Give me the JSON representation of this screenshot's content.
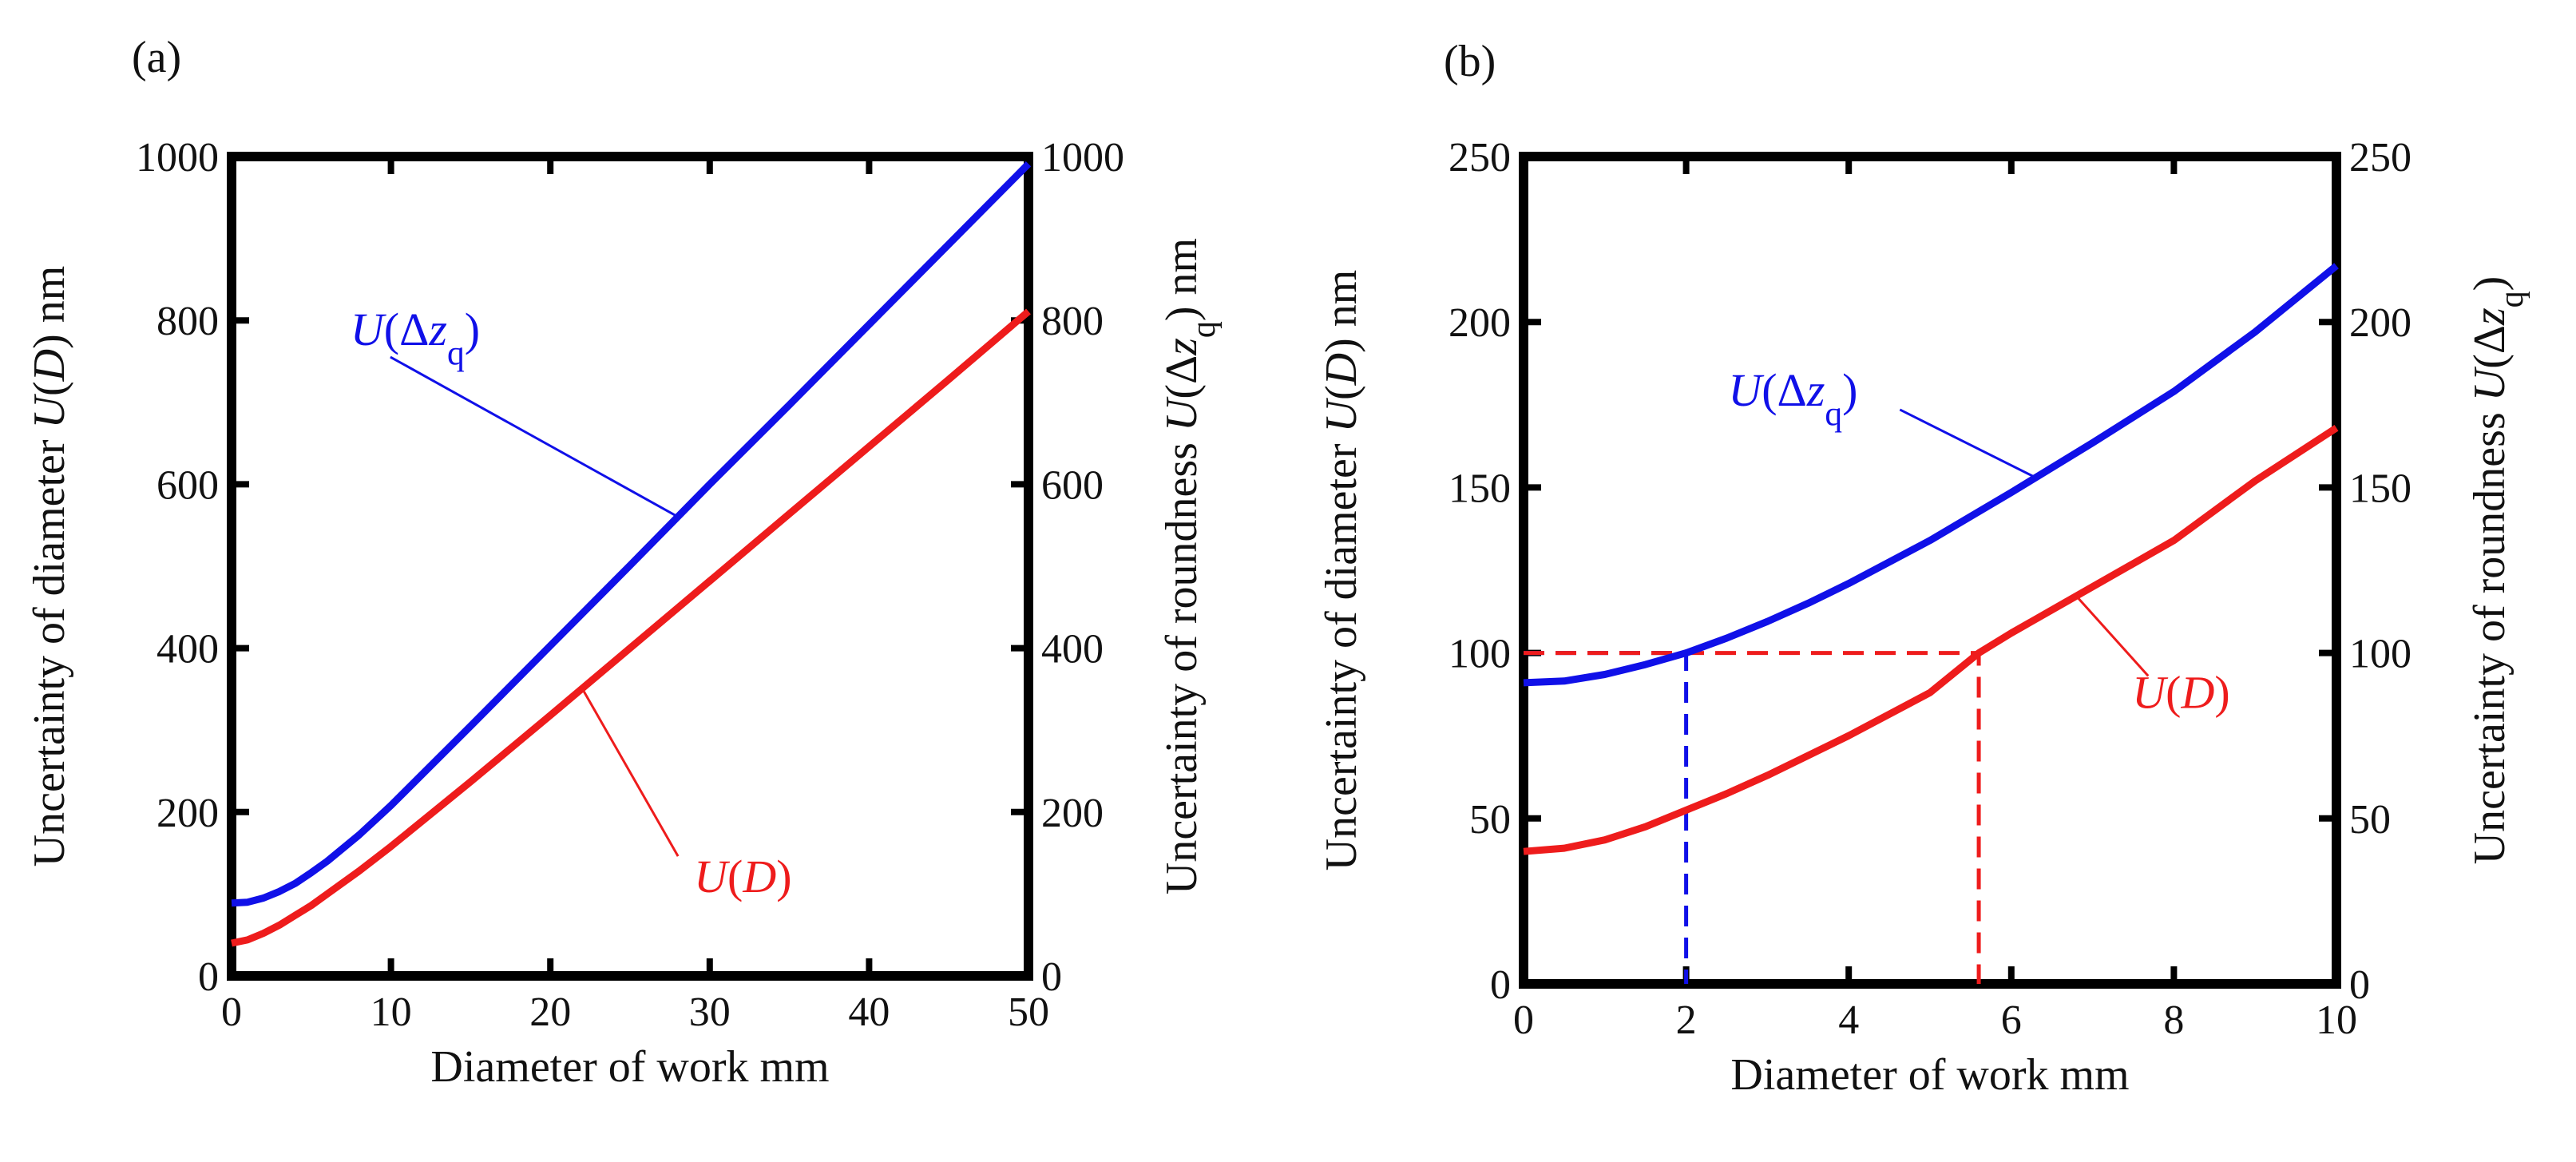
{
  "chart_data": [
    {
      "type": "line",
      "panel_label": "(a)",
      "xlabel": "Diameter of work mm",
      "ylabel_left": [
        "Uncertainty of diameter ",
        "U",
        "(",
        "D",
        ") nm"
      ],
      "ylabel_right": [
        "Uncertainty of roundness ",
        "U",
        "(Δ",
        "z",
        "q",
        ") nm"
      ],
      "xlim": [
        0,
        50
      ],
      "ylim": [
        0,
        1000
      ],
      "xticks": [
        "0",
        "10",
        "20",
        "30",
        "40",
        "50"
      ],
      "yticks": [
        "0",
        "200",
        "400",
        "600",
        "800",
        "1000"
      ],
      "yticks_right": [
        "0",
        "200",
        "400",
        "600",
        "800",
        "1000"
      ],
      "series": [
        {
          "name": "U(Δz_q)",
          "color": "#1010e8",
          "x": [
            0,
            1,
            2,
            3,
            4,
            5,
            6,
            8,
            10,
            15,
            20,
            25,
            30,
            35,
            40,
            45,
            50
          ],
          "y": [
            89,
            90,
            95,
            103,
            113,
            126,
            140,
            172,
            208,
            305,
            403,
            501,
            600,
            697,
            795,
            893,
            991
          ]
        },
        {
          "name": "U(D)",
          "color": "#ee1c1c",
          "x": [
            0,
            1,
            2,
            3,
            4,
            5,
            6,
            8,
            10,
            15,
            20,
            25,
            30,
            35,
            40,
            45,
            50
          ],
          "y": [
            40,
            44,
            52,
            62,
            74,
            86,
            100,
            128,
            158,
            237,
            318,
            400,
            482,
            564,
            646,
            728,
            811
          ]
        }
      ],
      "annotations": [
        {
          "series": 0,
          "parts": [
            "U",
            "(Δ",
            "z",
            "q",
            ")"
          ],
          "at_x": 28
        },
        {
          "series": 1,
          "parts": [
            "U",
            "(",
            "D",
            ")"
          ],
          "at_x": 22
        }
      ]
    },
    {
      "type": "line",
      "panel_label": "(b)",
      "xlabel": "Diameter of work mm",
      "ylabel_left": [
        "Uncertainty of diameter ",
        "U",
        "(",
        "D",
        ") nm"
      ],
      "ylabel_right": [
        "Uncertainty of roundness ",
        "U",
        "(Δ",
        "z",
        "q",
        ")"
      ],
      "xlim": [
        0,
        10
      ],
      "ylim": [
        0,
        250
      ],
      "xticks": [
        "0",
        "2",
        "4",
        "6",
        "8",
        "10"
      ],
      "yticks": [
        "0",
        "50",
        "100",
        "150",
        "200",
        "250"
      ],
      "yticks_right": [
        "0",
        "50",
        "100",
        "150",
        "200",
        "250"
      ],
      "series": [
        {
          "name": "U(Δz_q)",
          "color": "#1010e8",
          "x": [
            0,
            0.5,
            1,
            1.5,
            2,
            2.5,
            3,
            3.5,
            4,
            5,
            6,
            7,
            8,
            9,
            10
          ],
          "y": [
            91,
            91.5,
            93.5,
            96.5,
            100,
            104.5,
            109.5,
            115,
            121,
            134,
            148.5,
            163.5,
            179,
            197,
            217
          ]
        },
        {
          "name": "U(D)",
          "color": "#ee1c1c",
          "x": [
            0,
            0.5,
            1,
            1.5,
            2,
            2.5,
            3,
            4,
            5,
            5.6,
            6,
            7,
            8,
            9,
            10
          ],
          "y": [
            40,
            41,
            43.5,
            47.5,
            52.5,
            57.5,
            63,
            75,
            88,
            100,
            106,
            120,
            134,
            152,
            168
          ]
        }
      ],
      "reference_lines": [
        {
          "series": 0,
          "x": 2,
          "y": 100
        },
        {
          "series": 1,
          "x": 5.6,
          "y": 100
        }
      ],
      "annotations": [
        {
          "series": 0,
          "parts": [
            "U",
            "(Δ",
            "z",
            "q",
            ")"
          ],
          "at_x": 6.3
        },
        {
          "series": 1,
          "parts": [
            "U",
            "(",
            "D",
            ")"
          ],
          "at_x": 6.8
        }
      ]
    }
  ]
}
